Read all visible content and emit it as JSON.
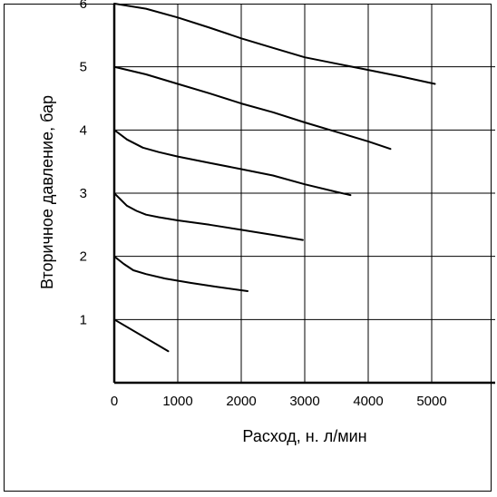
{
  "chart_data": {
    "type": "line",
    "xlabel": "Расход, н. л/мин",
    "ylabel": "Вторичное давление, бар",
    "xlim": [
      0,
      6000
    ],
    "ylim": [
      0,
      6
    ],
    "grid": true,
    "x_ticks": [
      {
        "value": 0,
        "label": "0"
      },
      {
        "value": 1000,
        "label": "1000"
      },
      {
        "value": 2000,
        "label": "2000"
      },
      {
        "value": 3000,
        "label": "3000"
      },
      {
        "value": 4000,
        "label": "4000"
      },
      {
        "value": 5000,
        "label": "5000"
      }
    ],
    "y_ticks": [
      {
        "value": 1,
        "label": "1"
      },
      {
        "value": 2,
        "label": "2"
      },
      {
        "value": 3,
        "label": "3"
      },
      {
        "value": 4,
        "label": "4"
      },
      {
        "value": 5,
        "label": "5"
      },
      {
        "value": 6,
        "label": "6"
      }
    ],
    "series": [
      {
        "points": [
          [
            0,
            1.0
          ],
          [
            850,
            0.5
          ]
        ]
      },
      {
        "points": [
          [
            0,
            2.0
          ],
          [
            150,
            1.88
          ],
          [
            300,
            1.78
          ],
          [
            500,
            1.72
          ],
          [
            800,
            1.65
          ],
          [
            1200,
            1.58
          ],
          [
            1600,
            1.52
          ],
          [
            2100,
            1.45
          ]
        ]
      },
      {
        "points": [
          [
            0,
            3.0
          ],
          [
            100,
            2.9
          ],
          [
            200,
            2.8
          ],
          [
            350,
            2.72
          ],
          [
            500,
            2.66
          ],
          [
            700,
            2.62
          ],
          [
            1000,
            2.57
          ],
          [
            1500,
            2.5
          ],
          [
            2000,
            2.42
          ],
          [
            2500,
            2.34
          ],
          [
            2970,
            2.26
          ]
        ]
      },
      {
        "points": [
          [
            0,
            4.0
          ],
          [
            200,
            3.85
          ],
          [
            450,
            3.72
          ],
          [
            700,
            3.65
          ],
          [
            1000,
            3.58
          ],
          [
            1500,
            3.48
          ],
          [
            2000,
            3.38
          ],
          [
            2500,
            3.28
          ],
          [
            3000,
            3.14
          ],
          [
            3500,
            3.02
          ],
          [
            3720,
            2.97
          ]
        ]
      },
      {
        "points": [
          [
            0,
            5.0
          ],
          [
            500,
            4.88
          ],
          [
            1000,
            4.73
          ],
          [
            1500,
            4.58
          ],
          [
            2000,
            4.42
          ],
          [
            2500,
            4.28
          ],
          [
            3000,
            4.12
          ],
          [
            3500,
            3.97
          ],
          [
            4000,
            3.82
          ],
          [
            4350,
            3.7
          ]
        ]
      },
      {
        "points": [
          [
            0,
            6.0
          ],
          [
            500,
            5.92
          ],
          [
            1000,
            5.78
          ],
          [
            1500,
            5.62
          ],
          [
            2000,
            5.45
          ],
          [
            2500,
            5.3
          ],
          [
            3000,
            5.15
          ],
          [
            3500,
            5.05
          ],
          [
            4000,
            4.95
          ],
          [
            4500,
            4.85
          ],
          [
            5050,
            4.73
          ]
        ]
      }
    ]
  }
}
